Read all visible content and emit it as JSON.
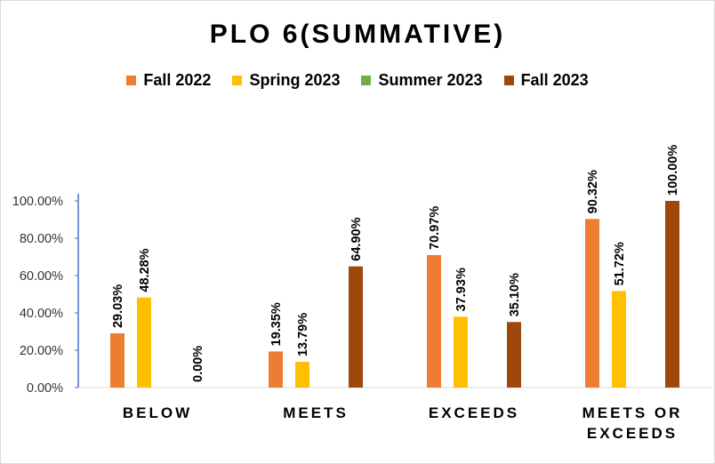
{
  "chart_data": {
    "type": "bar",
    "title": "PLO 6(SUMMATIVE)",
    "categories": [
      [
        "BELOW"
      ],
      [
        "MEETS"
      ],
      [
        "EXCEEDS"
      ],
      [
        "MEETS OR",
        "EXCEEDS"
      ]
    ],
    "series": [
      {
        "name": "Fall 2022",
        "color": "#ED7D31",
        "values": [
          29.03,
          19.35,
          70.97,
          90.32
        ],
        "labels": [
          "29.03%",
          "19.35%",
          "70.97%",
          "90.32%"
        ]
      },
      {
        "name": "Spring 2023",
        "color": "#FFC000",
        "values": [
          48.28,
          13.79,
          37.93,
          51.72
        ],
        "labels": [
          "48.28%",
          "13.79%",
          "37.93%",
          "51.72%"
        ]
      },
      {
        "name": "Summer 2023",
        "color": "#70AD47",
        "values": [
          null,
          null,
          null,
          null
        ],
        "labels": [
          null,
          null,
          null,
          null
        ]
      },
      {
        "name": "Fall 2023",
        "color": "#9E480E",
        "values": [
          0.0,
          64.9,
          35.1,
          100.0
        ],
        "labels": [
          "0.00%",
          "64.90%",
          "35.10%",
          "100.00%"
        ]
      }
    ],
    "yticks": [
      "0.00%",
      "20.00%",
      "40.00%",
      "60.00%",
      "80.00%",
      "100.00%"
    ],
    "ylim": [
      0,
      100
    ],
    "legend": "top",
    "grid": false
  }
}
